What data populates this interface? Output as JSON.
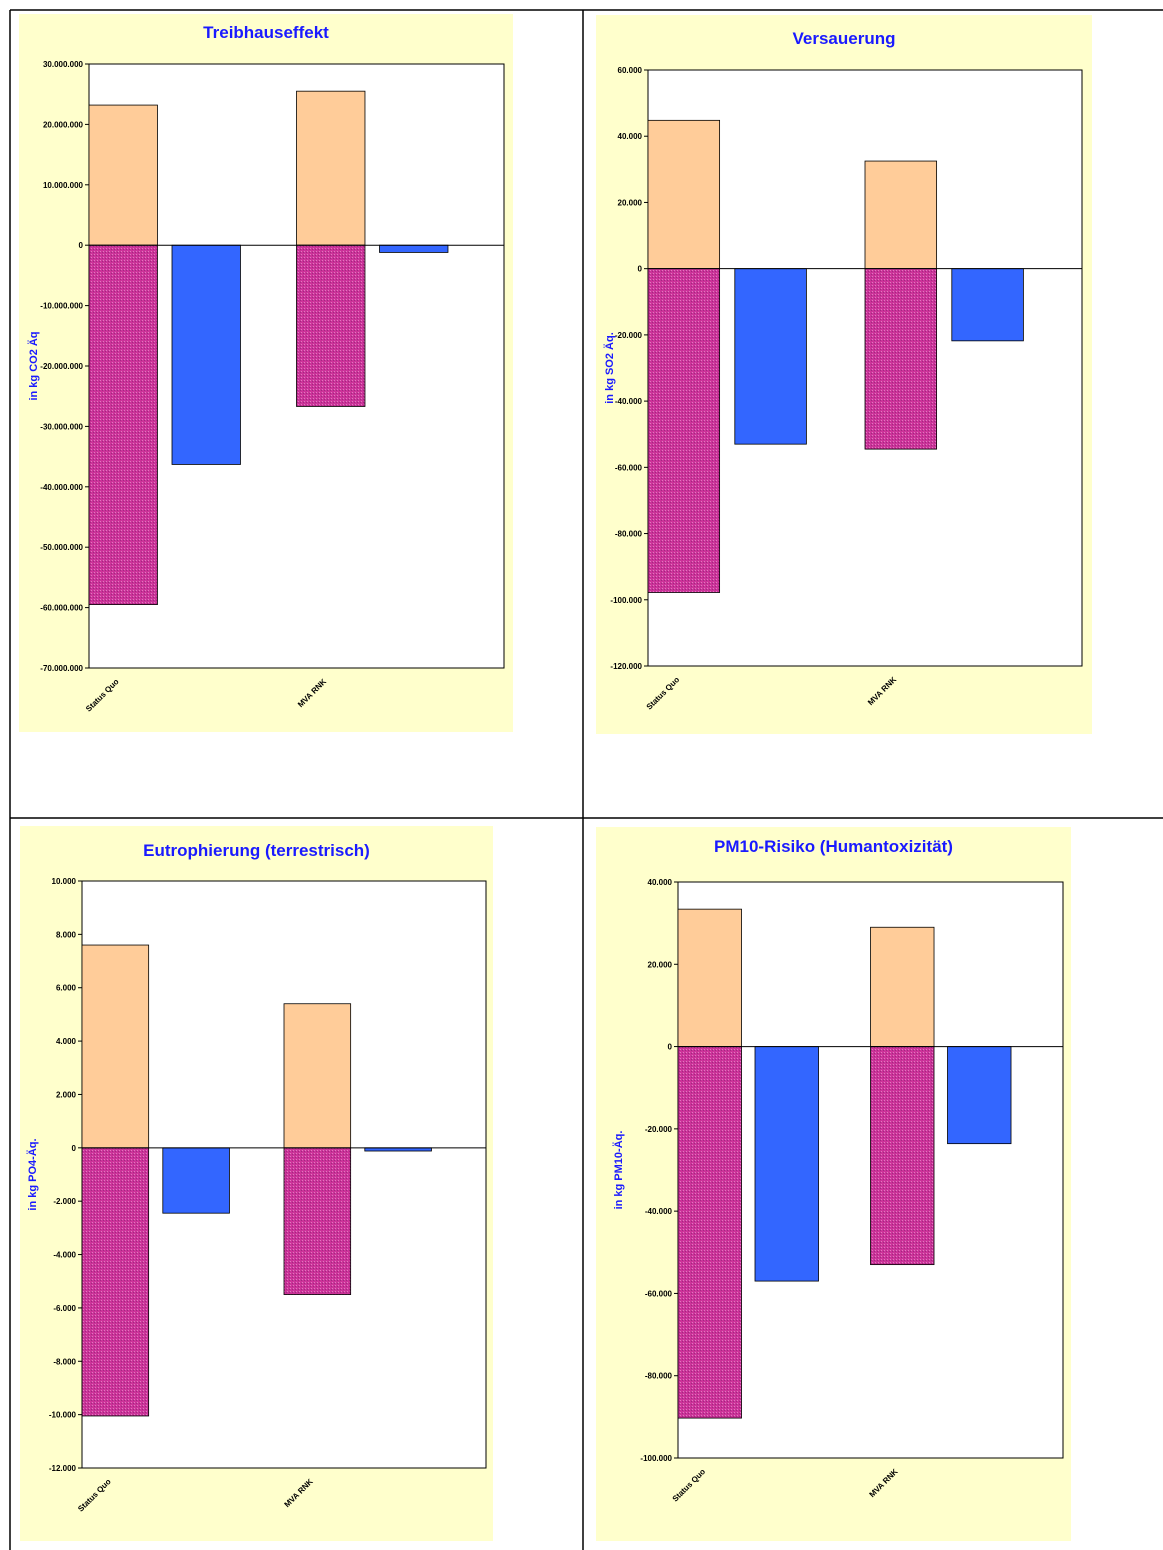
{
  "colors": {
    "panel_bg": "#ffffcc",
    "positive": "#ffcc99",
    "negative": "#cc3399",
    "net": "#3366ff",
    "title": "#1a1aff"
  },
  "chart_data": [
    {
      "type": "bar",
      "title": "Treibhauseffekt",
      "ylabel": "in kg CO2 Äq",
      "categories": [
        "Status Quo",
        "MVA RNK"
      ],
      "ylim": [
        -70000000,
        30000000
      ],
      "yticks": [
        30000000,
        20000000,
        10000000,
        0,
        -10000000,
        -20000000,
        -30000000,
        -40000000,
        -50000000,
        -60000000,
        -70000000
      ],
      "ytick_labels": [
        "30.000.000",
        "20.000.000",
        "10.000.000",
        "0",
        "-10.000.000",
        "-20.000.000",
        "-30.000.000",
        "-40.000.000",
        "-50.000.000",
        "-60.000.000",
        "-70.000.000"
      ],
      "series": [
        {
          "color": "#ffcc99",
          "values": [
            23200000,
            25500000
          ]
        },
        {
          "color": "#cc3399",
          "values": [
            -59500000,
            -26700000
          ]
        },
        {
          "color": "#3366ff",
          "values": [
            -36300000,
            -1200000
          ]
        }
      ]
    },
    {
      "type": "bar",
      "title": "Versauerung",
      "ylabel": "in kg SO2 Äq.",
      "categories": [
        "Status Quo",
        "MVA RNK"
      ],
      "ylim": [
        -120000,
        60000
      ],
      "yticks": [
        60000,
        40000,
        20000,
        0,
        -20000,
        -40000,
        -60000,
        -80000,
        -100000,
        -120000
      ],
      "ytick_labels": [
        "60.000",
        "40.000",
        "20.000",
        "0",
        "-20.000",
        "-40.000",
        "-60.000",
        "-80.000",
        "-100.000",
        "-120.000"
      ],
      "series": [
        {
          "color": "#ffcc99",
          "values": [
            44800,
            32500
          ]
        },
        {
          "color": "#cc3399",
          "values": [
            -97800,
            -54500
          ]
        },
        {
          "color": "#3366ff",
          "values": [
            -53000,
            -21800
          ]
        }
      ]
    },
    {
      "type": "bar",
      "title": "Eutrophierung (terrestrisch)",
      "ylabel": "in kg PO4-Äq.",
      "categories": [
        "Status Quo",
        "MVA RNK"
      ],
      "ylim": [
        -12000,
        10000
      ],
      "yticks": [
        10000,
        8000,
        6000,
        4000,
        2000,
        0,
        -2000,
        -4000,
        -6000,
        -8000,
        -10000,
        -12000
      ],
      "ytick_labels": [
        "10.000",
        "8.000",
        "6.000",
        "4.000",
        "2.000",
        "0",
        "-2.000",
        "-4.000",
        "-6.000",
        "-8.000",
        "-10.000",
        "-12.000"
      ],
      "series": [
        {
          "color": "#ffcc99",
          "values": [
            7600,
            5400
          ]
        },
        {
          "color": "#cc3399",
          "values": [
            -10050,
            -5500
          ]
        },
        {
          "color": "#3366ff",
          "values": [
            -2450,
            -120
          ]
        }
      ]
    },
    {
      "type": "bar",
      "title": "PM10-Risiko (Humantoxizität)",
      "ylabel": "in kg PM10-Äq.",
      "categories": [
        "Status Quo",
        "MVA RNK"
      ],
      "ylim": [
        -100000,
        40000
      ],
      "yticks": [
        40000,
        20000,
        0,
        -20000,
        -40000,
        -60000,
        -80000,
        -100000
      ],
      "ytick_labels": [
        "40.000",
        "20.000",
        "0",
        "-20.000",
        "-40.000",
        "-60.000",
        "-80.000",
        "-100.000"
      ],
      "series": [
        {
          "color": "#ffcc99",
          "values": [
            33400,
            29000
          ]
        },
        {
          "color": "#cc3399",
          "values": [
            -90300,
            -53000
          ]
        },
        {
          "color": "#3366ff",
          "values": [
            -57000,
            -23600
          ]
        }
      ]
    }
  ]
}
